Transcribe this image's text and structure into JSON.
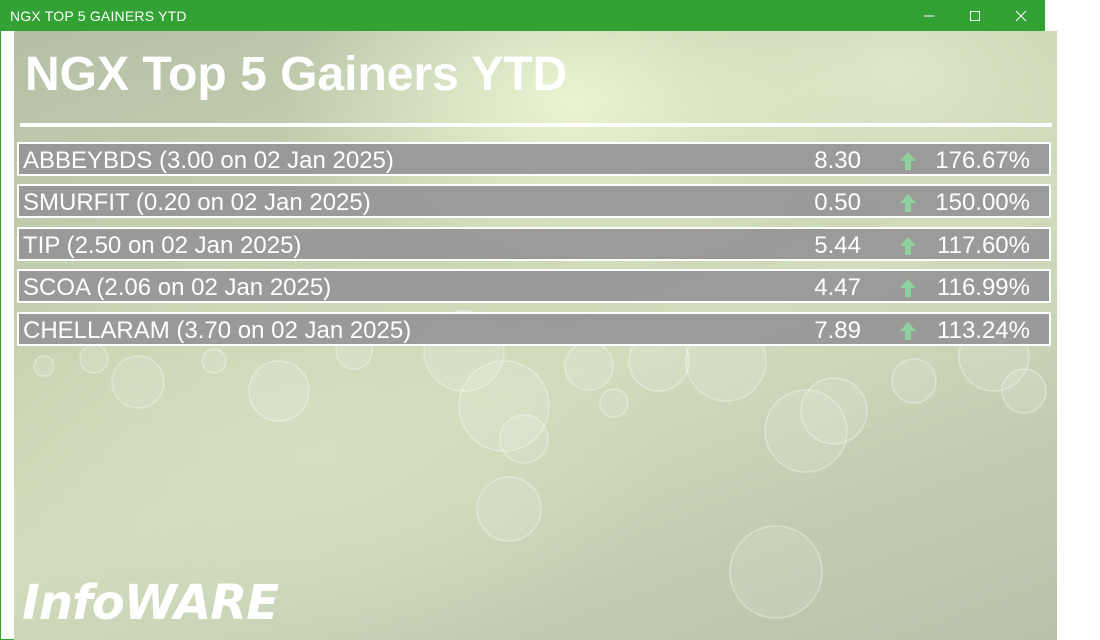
{
  "window": {
    "title": "NGX TOP 5 GAINERS YTD",
    "accent_color": "#33a235",
    "controls": [
      "minimize-icon",
      "maximize-icon",
      "close-icon"
    ]
  },
  "header": {
    "title": "NGX Top 5 Gainers YTD"
  },
  "gainers": [
    {
      "label": "ABBEYBDS (3.00 on 02 Jan 2025)",
      "price": "8.30",
      "trend_icon": "arrow-up-icon",
      "change": "176.67%"
    },
    {
      "label": "SMURFIT (0.20 on 02 Jan 2025)",
      "price": "0.50",
      "trend_icon": "arrow-up-icon",
      "change": "150.00%"
    },
    {
      "label": "TIP (2.50 on 02 Jan 2025)",
      "price": "5.44",
      "trend_icon": "arrow-up-icon",
      "change": "117.60%"
    },
    {
      "label": "SCOA (2.06 on 02 Jan 2025)",
      "price": "4.47",
      "trend_icon": "arrow-up-icon",
      "change": "116.99%"
    },
    {
      "label": "CHELLARAM (3.70 on 02 Jan 2025)",
      "price": "7.89",
      "trend_icon": "arrow-up-icon",
      "change": "113.24%"
    }
  ],
  "footer": {
    "brand": "InfoWARE"
  },
  "colors": {
    "row_background": "#969696",
    "arrow_up": "#8fd19e",
    "text": "#ffffff"
  }
}
